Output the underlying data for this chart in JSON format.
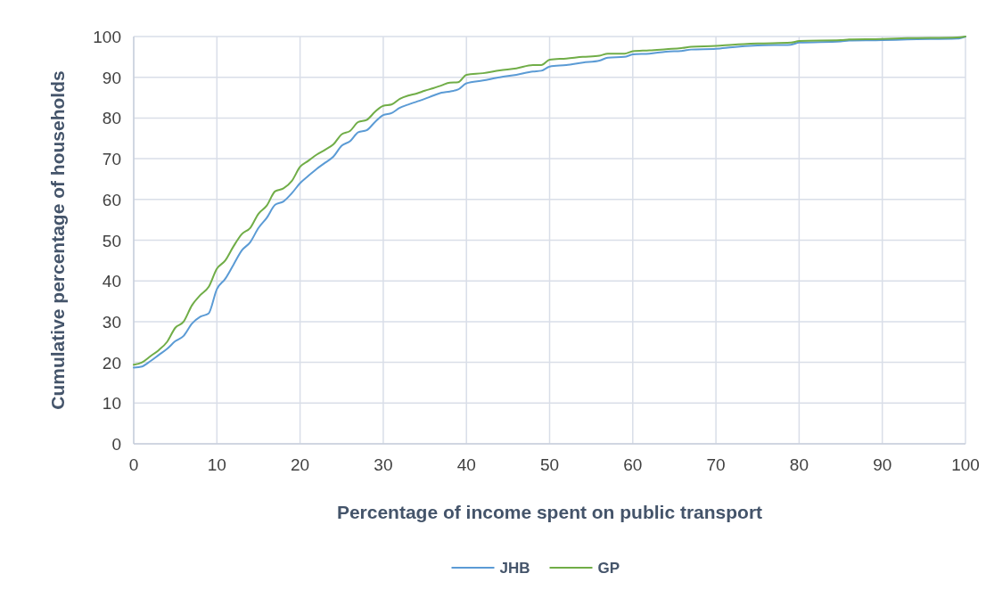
{
  "chart_data": {
    "type": "line",
    "xlabel": "Percentage of income spent on public transport",
    "ylabel": "Cumulative percentage of households",
    "x": [
      0,
      1,
      2,
      3,
      4,
      5,
      6,
      7,
      8,
      9,
      10,
      11,
      12,
      13,
      14,
      15,
      16,
      17,
      18,
      19,
      20,
      21,
      22,
      23,
      24,
      25,
      26,
      27,
      28,
      29,
      30,
      31,
      32,
      33,
      34,
      35,
      36,
      37,
      38,
      39,
      40,
      42,
      44,
      46,
      48,
      49,
      50,
      52,
      54,
      56,
      57,
      59,
      60,
      62,
      64,
      66,
      67,
      70,
      72,
      75,
      79,
      80,
      85,
      86,
      90,
      93,
      99,
      100
    ],
    "series": [
      {
        "name": "JHB",
        "color": "#5b9bd5",
        "values": [
          18.7,
          19,
          20.3,
          21.8,
          23.3,
          25.2,
          26.5,
          29.5,
          31.2,
          32,
          38,
          40.5,
          44,
          47.5,
          49.5,
          53,
          55.5,
          58.7,
          59.5,
          61.5,
          64,
          65.8,
          67.5,
          69,
          70.5,
          73.2,
          74.3,
          76.5,
          77,
          79,
          80.7,
          81.2,
          82.5,
          83.3,
          84,
          84.7,
          85.5,
          86.2,
          86.5,
          87,
          88.5,
          89.2,
          90,
          90.6,
          91.4,
          91.6,
          92.6,
          93,
          93.6,
          94.1,
          94.8,
          95,
          95.6,
          95.8,
          96.3,
          96.5,
          96.8,
          97,
          97.4,
          97.8,
          98,
          98.5,
          98.8,
          99,
          99.1,
          99.3,
          99.5,
          100
        ]
      },
      {
        "name": "GP",
        "color": "#70ad47",
        "values": [
          19.4,
          20,
          21.5,
          23,
          25,
          28.5,
          30,
          34,
          36.5,
          38.5,
          43,
          45,
          48.5,
          51.5,
          53,
          56.5,
          58.5,
          62,
          62.7,
          64.5,
          68,
          69.5,
          71,
          72.2,
          73.5,
          76,
          76.8,
          79,
          79.5,
          81.5,
          83,
          83.3,
          84.7,
          85.5,
          86,
          86.7,
          87.3,
          88,
          88.7,
          88.8,
          90.6,
          91,
          91.7,
          92.2,
          93,
          93,
          94.3,
          94.6,
          95,
          95.3,
          95.8,
          95.8,
          96.4,
          96.6,
          96.9,
          97.2,
          97.5,
          97.7,
          98,
          98.3,
          98.5,
          98.9,
          99.1,
          99.3,
          99.4,
          99.6,
          99.8,
          100
        ]
      }
    ],
    "xlim": [
      0,
      100
    ],
    "xticks": [
      0,
      10,
      20,
      30,
      40,
      50,
      60,
      70,
      80,
      90,
      100
    ],
    "ylim": [
      0,
      100
    ],
    "yticks": [
      0,
      10,
      20,
      30,
      40,
      50,
      60,
      70,
      80,
      90,
      100
    ],
    "grid": true,
    "legend": "bottom",
    "marker": "none",
    "line_style": "solid"
  }
}
